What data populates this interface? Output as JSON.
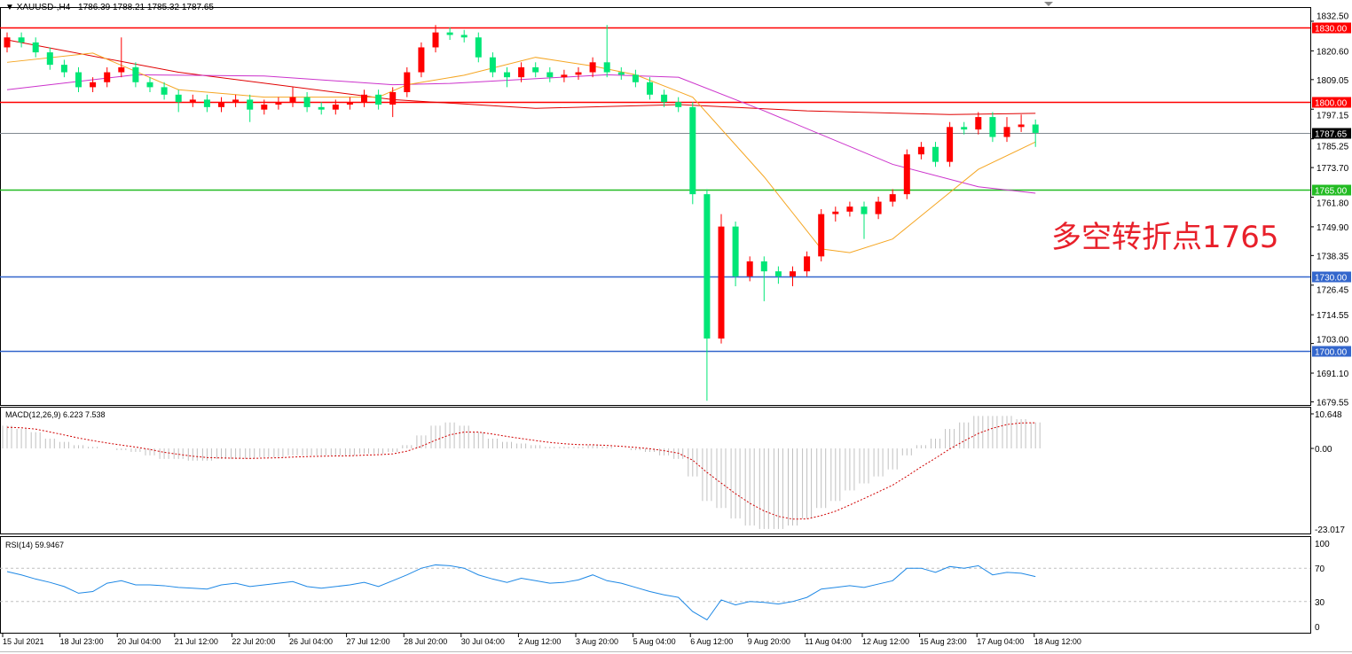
{
  "header": {
    "symbol": "XAUUSD-,H4",
    "ohlc": "1786.39 1788.21 1785.32 1787.65",
    "dropdown_icon": "triangle-down-icon"
  },
  "annotation": "多空转折点1765",
  "macd_label": "MACD(12,26,9) 6.223 7.538",
  "rsi_label": "RSI(14) 59.9467",
  "colors": {
    "bull_candle": "#ff0000",
    "bear_candle": "#00e676",
    "ma_slow": "#e00000",
    "ma_mid": "#cc33cc",
    "ma_fast": "#f5a623",
    "macd_hist": "#c0c0c0",
    "macd_signal": "#d00000",
    "rsi_line": "#1e88e5"
  },
  "chart_data": {
    "type": "candlestick",
    "price_axis_ticks": [
      "1832.50",
      "1820.60",
      "1809.05",
      "1797.15",
      "1785.25",
      "1773.70",
      "1761.80",
      "1749.90",
      "1738.35",
      "1726.45",
      "1714.55",
      "1703.00",
      "1691.10",
      "1679.55"
    ],
    "ylim": [
      1677,
      1835
    ],
    "time_axis_ticks": [
      "15 Jul 2021",
      "18 Jul 23:00",
      "20 Jul 04:00",
      "21 Jul 12:00",
      "22 Jul 20:00",
      "26 Jul 04:00",
      "27 Jul 12:00",
      "28 Jul 20:00",
      "30 Jul 04:00",
      "2 Aug 12:00",
      "3 Aug 20:00",
      "5 Aug 04:00",
      "6 Aug 12:00",
      "9 Aug 20:00",
      "11 Aug 04:00",
      "12 Aug 12:00",
      "15 Aug 23:00",
      "17 Aug 04:00",
      "18 Aug 12:00"
    ],
    "horizontal_lines": [
      {
        "price": 1830,
        "label": "1830.00",
        "color": "#ff0000"
      },
      {
        "price": 1800,
        "label": "1800.00",
        "color": "#ff0000"
      },
      {
        "price": 1787.65,
        "label": "1787.65",
        "color": "#808890",
        "current": true
      },
      {
        "price": 1765,
        "label": "1765.00",
        "color": "#22bb22"
      },
      {
        "price": 1730,
        "label": "1730.00",
        "color": "#3366cc"
      },
      {
        "price": 1700,
        "label": "1700.00",
        "color": "#3366cc"
      }
    ],
    "open": [
      1822,
      1826,
      1824,
      1820,
      1815,
      1812,
      1806,
      1808,
      1812,
      1814,
      1808,
      1806,
      1803,
      1800,
      1801,
      1798,
      1800,
      1801,
      1797,
      1799,
      1800,
      1802,
      1798,
      1797,
      1799,
      1800,
      1803,
      1799,
      1804,
      1812,
      1822,
      1828,
      1827,
      1826,
      1818,
      1812,
      1810,
      1814,
      1812,
      1810,
      1811,
      1812,
      1816,
      1812,
      1811,
      1808,
      1803,
      1800,
      1798,
      1763,
      1705,
      1750,
      1730,
      1736,
      1732,
      1730,
      1732,
      1738,
      1755,
      1756,
      1758,
      1755,
      1760,
      1763,
      1779,
      1782,
      1776,
      1790,
      1789,
      1794,
      1786,
      1790,
      1791
    ],
    "high": [
      1828,
      1828,
      1826,
      1822,
      1817,
      1814,
      1810,
      1814,
      1826,
      1816,
      1810,
      1808,
      1805,
      1803,
      1803,
      1802,
      1803,
      1803,
      1801,
      1802,
      1806,
      1804,
      1800,
      1801,
      1802,
      1805,
      1805,
      1806,
      1814,
      1824,
      1831,
      1830,
      1829,
      1828,
      1820,
      1814,
      1816,
      1816,
      1814,
      1813,
      1814,
      1818,
      1831,
      1814,
      1813,
      1810,
      1805,
      1802,
      1800,
      1765,
      1755,
      1752,
      1738,
      1738,
      1734,
      1734,
      1740,
      1757,
      1758,
      1760,
      1760,
      1762,
      1765,
      1781,
      1784,
      1784,
      1792,
      1792,
      1796,
      1796,
      1794,
      1795,
      1793
    ],
    "low": [
      1820,
      1822,
      1818,
      1813,
      1810,
      1804,
      1804,
      1806,
      1810,
      1806,
      1804,
      1801,
      1796,
      1798,
      1796,
      1796,
      1798,
      1792,
      1795,
      1797,
      1798,
      1796,
      1795,
      1795,
      1797,
      1798,
      1797,
      1794,
      1802,
      1810,
      1820,
      1825,
      1824,
      1816,
      1810,
      1806,
      1808,
      1810,
      1808,
      1808,
      1809,
      1810,
      1810,
      1809,
      1806,
      1801,
      1798,
      1796,
      1759,
      1680,
      1703,
      1726,
      1728,
      1720,
      1727,
      1726,
      1730,
      1736,
      1752,
      1754,
      1745,
      1753,
      1758,
      1761,
      1777,
      1774,
      1774,
      1787,
      1787,
      1784,
      1784,
      1788,
      1782
    ],
    "close": [
      1826,
      1824,
      1820,
      1815,
      1812,
      1806,
      1808,
      1812,
      1814,
      1808,
      1806,
      1803,
      1800,
      1801,
      1798,
      1800,
      1801,
      1797,
      1799,
      1800,
      1802,
      1798,
      1797,
      1799,
      1800,
      1803,
      1799,
      1804,
      1812,
      1822,
      1828,
      1827,
      1826,
      1818,
      1812,
      1810,
      1814,
      1812,
      1810,
      1811,
      1812,
      1816,
      1812,
      1811,
      1808,
      1803,
      1800,
      1798,
      1763,
      1705,
      1750,
      1730,
      1736,
      1732,
      1730,
      1732,
      1738,
      1755,
      1756,
      1758,
      1755,
      1760,
      1763,
      1779,
      1782,
      1776,
      1790,
      1789,
      1794,
      1786,
      1790,
      1791,
      1787.65
    ],
    "moving_averages": [
      {
        "role": "slow",
        "points": [
          [
            0,
            1825
          ],
          [
            12,
            1812
          ],
          [
            27,
            1801
          ],
          [
            37,
            1797.5
          ],
          [
            47,
            1799
          ],
          [
            56,
            1796.5
          ],
          [
            66,
            1795
          ],
          [
            72,
            1795.5
          ]
        ]
      },
      {
        "role": "mid",
        "points": [
          [
            0,
            1805
          ],
          [
            9,
            1811
          ],
          [
            18,
            1810.5
          ],
          [
            27,
            1807
          ],
          [
            31,
            1807.5
          ],
          [
            42,
            1811
          ],
          [
            47,
            1810
          ],
          [
            53,
            1796.5
          ],
          [
            62,
            1775
          ],
          [
            68,
            1766
          ],
          [
            72,
            1763.4
          ]
        ]
      },
      {
        "role": "fast",
        "points": [
          [
            0,
            1816
          ],
          [
            6,
            1819.7
          ],
          [
            12,
            1805
          ],
          [
            18,
            1802
          ],
          [
            26,
            1802
          ],
          [
            28,
            1807
          ],
          [
            32,
            1810.8
          ],
          [
            37,
            1818
          ],
          [
            41,
            1814.5
          ],
          [
            44,
            1811
          ],
          [
            48,
            1802
          ],
          [
            53,
            1770
          ],
          [
            57,
            1741
          ],
          [
            59,
            1739.5
          ],
          [
            62,
            1745
          ],
          [
            65,
            1759
          ],
          [
            68,
            1773
          ],
          [
            72,
            1784
          ]
        ]
      }
    ],
    "macd": {
      "axis_ticks": [
        "10.648",
        "0.00",
        "-23.017"
      ],
      "ylim": [
        -23.017,
        10.648
      ],
      "histogram": [
        7,
        6,
        5,
        3,
        2,
        1,
        0.5,
        0,
        -0.5,
        -1,
        -2,
        -3,
        -3,
        -3.5,
        -3.5,
        -3,
        -3,
        -3,
        -2.5,
        -2.5,
        -2,
        -2,
        -2,
        -2,
        -2,
        -1.5,
        -1.5,
        -1,
        1,
        4,
        7,
        8,
        7,
        5,
        3,
        2,
        1.5,
        1,
        0.5,
        0.5,
        0.5,
        1,
        0.5,
        0,
        -0.5,
        -1,
        -2,
        -3,
        -8,
        -15,
        -17,
        -20,
        -22,
        -23,
        -23,
        -22,
        -20,
        -17,
        -15,
        -12,
        -10,
        -8,
        -6,
        -2,
        1,
        3,
        6,
        8,
        10,
        10,
        10,
        9,
        8
      ]
    },
    "rsi": {
      "axis_ticks": [
        "100",
        "70",
        "30",
        "0"
      ],
      "levels": [
        70,
        30
      ],
      "ylim": [
        0,
        100
      ],
      "values": [
        66,
        62,
        57,
        53,
        48,
        40,
        42,
        52,
        55,
        50,
        50,
        49,
        47,
        46,
        45,
        50,
        52,
        48,
        50,
        52,
        54,
        48,
        46,
        48,
        50,
        53,
        48,
        55,
        62,
        70,
        74,
        73,
        70,
        62,
        57,
        53,
        58,
        55,
        52,
        53,
        56,
        62,
        55,
        52,
        47,
        42,
        38,
        35,
        18,
        8,
        32,
        26,
        30,
        29,
        27,
        30,
        35,
        45,
        47,
        49,
        47,
        51,
        55,
        70,
        70,
        65,
        72,
        70,
        73,
        62,
        65,
        64,
        59.95
      ]
    }
  }
}
